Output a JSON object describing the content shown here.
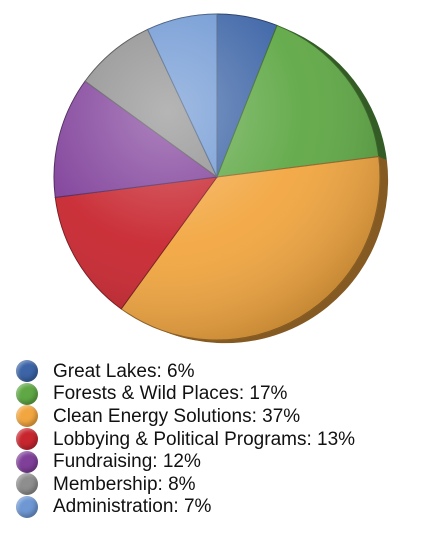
{
  "chart_data": {
    "type": "pie",
    "title": "",
    "legend_position": "bottom-left",
    "slices": [
      {
        "label": "Great Lakes: 6%",
        "category": "Great Lakes",
        "value": 6,
        "color": "#3c64a6"
      },
      {
        "label": "Forests & Wild Places: 17%",
        "category": "Forests & Wild Places",
        "value": 17,
        "color": "#5fa845"
      },
      {
        "label": "Clean Energy Solutions: 37%",
        "category": "Clean Energy Solutions",
        "value": 37,
        "color": "#f2a640"
      },
      {
        "label": "Lobbying & Political Programs: 13%",
        "category": "Lobbying & Political Programs",
        "value": 13,
        "color": "#c8262f"
      },
      {
        "label": "Fundraising: 12%",
        "category": "Fundraising",
        "value": 12,
        "color": "#80409a"
      },
      {
        "label": "Membership: 8%",
        "category": "Membership",
        "value": 8,
        "color": "#8e8e8e"
      },
      {
        "label": "Administration: 7%",
        "category": "Administration",
        "value": 7,
        "color": "#6e97d3"
      }
    ]
  }
}
